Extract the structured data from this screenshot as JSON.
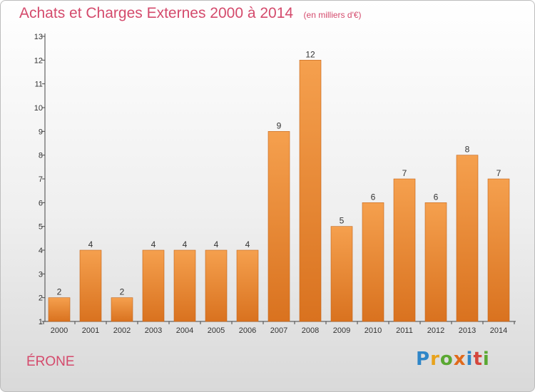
{
  "header": {
    "title": "Achats et Charges Externes 2000 à 2014",
    "unit": "(en milliers d'€)"
  },
  "place": "ÉRONE",
  "brand": {
    "text": "Proxiti",
    "letters": [
      {
        "ch": "P",
        "color": "#2f86c8"
      },
      {
        "ch": "r",
        "color": "#e8a21c"
      },
      {
        "ch": "o",
        "color": "#5aa832"
      },
      {
        "ch": "x",
        "color": "#e06a1b"
      },
      {
        "ch": "i",
        "color": "#2f86c8"
      },
      {
        "ch": "t",
        "color": "#d4463c"
      },
      {
        "ch": "i",
        "color": "#5aa832"
      }
    ]
  },
  "colors": {
    "bar_top": "#f5a04e",
    "bar_bottom": "#d9721f",
    "axis": "#444444",
    "title": "#d44a6c"
  },
  "chart_data": {
    "type": "bar",
    "title": "Achats et Charges Externes 2000 à 2014",
    "subtitle": "(en milliers d'€)",
    "xlabel": "",
    "ylabel": "",
    "categories": [
      "2000",
      "2001",
      "2002",
      "2003",
      "2004",
      "2005",
      "2006",
      "2007",
      "2008",
      "2009",
      "2010",
      "2011",
      "2012",
      "2013",
      "2014"
    ],
    "values": [
      2,
      4,
      2,
      4,
      4,
      4,
      4,
      9,
      12,
      5,
      6,
      7,
      6,
      8,
      7
    ],
    "ylim": [
      1,
      13
    ],
    "yticks": [
      1,
      2,
      3,
      4,
      5,
      6,
      7,
      8,
      9,
      10,
      11,
      12,
      13
    ],
    "grid": false,
    "legend": "none"
  }
}
